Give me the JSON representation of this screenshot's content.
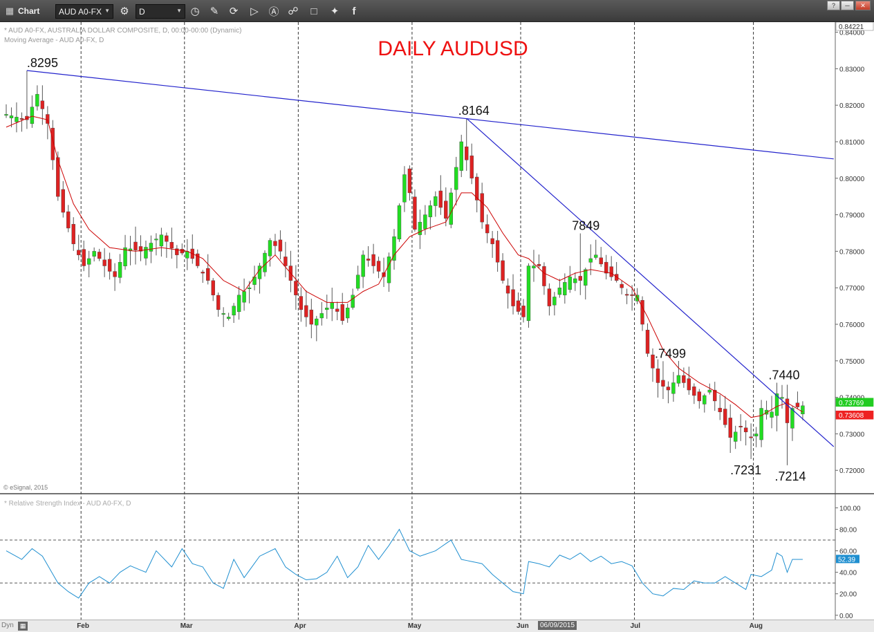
{
  "toolbar": {
    "app_label": "Chart",
    "symbol": "AUD A0-FX",
    "interval": "D"
  },
  "status": {
    "dyn_label": "Dyn",
    "cursor_date": "06/09/2015"
  },
  "colors": {
    "up_candle": "#22dd22",
    "down_candle": "#dd2222",
    "moving_average": "#cc0000",
    "trendline": "#2222cc",
    "rsi_line": "#1f8fd0",
    "title": "#ee1111",
    "current_price_badge": "#22cc22",
    "ma_badge": "#ee2222",
    "rsi_badge": "#1f8fd0"
  },
  "chart_data": [
    {
      "type": "candlestick",
      "title": "DAILY AUDUSD",
      "header_line_1": "* AUD A0-FX, AUSTRALIA DOLLAR COMPOSITE, D, 00:00-00:00 (Dynamic)",
      "header_line_2": "Moving Average - AUD A0-FX, D",
      "copyright": "© eSignal, 2015",
      "y_axis_position": "right",
      "ylim": [
        0.7155,
        0.842
      ],
      "y_ticks": [
        {
          "value": 0.72,
          "label": "0.72000"
        },
        {
          "value": 0.73,
          "label": "0.73000"
        },
        {
          "value": 0.74,
          "label": "0.74000"
        },
        {
          "value": 0.75,
          "label": "0.75000"
        },
        {
          "value": 0.76,
          "label": "0.76000"
        },
        {
          "value": 0.77,
          "label": "0.77000"
        },
        {
          "value": 0.78,
          "label": "0.78000"
        },
        {
          "value": 0.79,
          "label": "0.79000"
        },
        {
          "value": 0.8,
          "label": "0.80000"
        },
        {
          "value": 0.81,
          "label": "0.81000"
        },
        {
          "value": 0.82,
          "label": "0.82000"
        },
        {
          "value": 0.83,
          "label": "0.83000"
        },
        {
          "value": 0.84,
          "label": "0.84000"
        }
      ],
      "x_months": [
        {
          "label": "Feb",
          "bar_index": 15
        },
        {
          "label": "Mar",
          "bar_index": 35
        },
        {
          "label": "Apr",
          "bar_index": 57
        },
        {
          "label": "May",
          "bar_index": 79
        },
        {
          "label": "Jun",
          "bar_index": 100
        },
        {
          "label": "Jul",
          "bar_index": 122
        },
        {
          "label": "Aug",
          "bar_index": 145
        }
      ],
      "bar_count": 155,
      "series": [
        {
          "name": "AUD A0-FX",
          "kind": "ohlc",
          "anchors": [
            [
              0,
              0.8175
            ],
            [
              4,
              0.816
            ],
            [
              6,
              0.823
            ],
            [
              8,
              0.815
            ],
            [
              10,
              0.795
            ],
            [
              13,
              0.782
            ],
            [
              15,
              0.776
            ],
            [
              17,
              0.78
            ],
            [
              19,
              0.776
            ],
            [
              21,
              0.773
            ],
            [
              23,
              0.781
            ],
            [
              26,
              0.78
            ],
            [
              30,
              0.7845
            ],
            [
              33,
              0.779
            ],
            [
              35,
              0.78
            ],
            [
              37,
              0.776
            ],
            [
              39,
              0.772
            ],
            [
              41,
              0.764
            ],
            [
              43,
              0.762
            ],
            [
              45,
              0.768
            ],
            [
              47,
              0.77
            ],
            [
              49,
              0.776
            ],
            [
              51,
              0.783
            ],
            [
              53,
              0.78
            ],
            [
              55,
              0.772
            ],
            [
              57,
              0.764
            ],
            [
              59,
              0.76
            ],
            [
              61,
              0.763
            ],
            [
              63,
              0.766
            ],
            [
              65,
              0.761
            ],
            [
              67,
              0.768
            ],
            [
              69,
              0.779
            ],
            [
              71,
              0.776
            ],
            [
              73,
              0.773
            ],
            [
              75,
              0.784
            ],
            [
              77,
              0.801
            ],
            [
              78,
              0.796
            ],
            [
              79,
              0.786
            ],
            [
              81,
              0.79
            ],
            [
              83,
              0.795
            ],
            [
              85,
              0.789
            ],
            [
              87,
              0.803
            ],
            [
              88,
              0.81
            ],
            [
              90,
              0.8
            ],
            [
              92,
              0.788
            ],
            [
              94,
              0.782
            ],
            [
              96,
              0.772
            ],
            [
              98,
              0.765
            ],
            [
              100,
              0.762
            ],
            [
              101,
              0.776
            ],
            [
              103,
              0.776
            ],
            [
              105,
              0.765
            ],
            [
              107,
              0.77
            ],
            [
              109,
              0.773
            ],
            [
              111,
              0.772
            ],
            [
              113,
              0.778
            ],
            [
              114,
              0.779
            ],
            [
              116,
              0.774
            ],
            [
              118,
              0.772
            ],
            [
              120,
              0.768
            ],
            [
              122,
              0.768
            ],
            [
              124,
              0.752
            ],
            [
              126,
              0.744
            ],
            [
              128,
              0.742
            ],
            [
              130,
              0.746
            ],
            [
              132,
              0.742
            ],
            [
              134,
              0.739
            ],
            [
              136,
              0.742
            ],
            [
              138,
              0.736
            ],
            [
              140,
              0.729
            ],
            [
              142,
              0.732
            ],
            [
              144,
              0.729
            ],
            [
              145,
              0.73
            ],
            [
              146,
              0.737
            ],
            [
              148,
              0.736
            ],
            [
              149,
              0.741
            ],
            [
              150,
              0.74
            ],
            [
              151,
              0.733
            ],
            [
              152,
              0.737
            ],
            [
              154,
              0.7377
            ]
          ],
          "marked_levels": [
            {
              "label": ".8295",
              "bar_index": 4,
              "price": 0.8295
            },
            {
              "label": ".8164",
              "bar_index": 89,
              "price": 0.8164
            },
            {
              "label": "7849",
              "bar_index": 111,
              "price": 0.7849
            },
            {
              "label": ".7499",
              "bar_index": 127,
              "price": 0.7499
            },
            {
              "label": ".7440",
              "bar_index": 149,
              "price": 0.744
            },
            {
              "label": ".7231",
              "bar_index": 144,
              "price": 0.7231
            },
            {
              "label": ".7214",
              "bar_index": 151,
              "price": 0.7214
            }
          ]
        },
        {
          "name": "Moving Average",
          "kind": "line",
          "anchors": [
            [
              0,
              0.814
            ],
            [
              5,
              0.817
            ],
            [
              8,
              0.816
            ],
            [
              10,
              0.805
            ],
            [
              13,
              0.793
            ],
            [
              16,
              0.786
            ],
            [
              20,
              0.781
            ],
            [
              25,
              0.78
            ],
            [
              30,
              0.781
            ],
            [
              35,
              0.78
            ],
            [
              38,
              0.778
            ],
            [
              42,
              0.772
            ],
            [
              46,
              0.769
            ],
            [
              49,
              0.775
            ],
            [
              52,
              0.779
            ],
            [
              55,
              0.774
            ],
            [
              58,
              0.769
            ],
            [
              62,
              0.766
            ],
            [
              66,
              0.766
            ],
            [
              69,
              0.769
            ],
            [
              72,
              0.771
            ],
            [
              75,
              0.779
            ],
            [
              78,
              0.784
            ],
            [
              81,
              0.786
            ],
            [
              85,
              0.788
            ],
            [
              88,
              0.796
            ],
            [
              90,
              0.796
            ],
            [
              93,
              0.792
            ],
            [
              96,
              0.785
            ],
            [
              99,
              0.779
            ],
            [
              101,
              0.778
            ],
            [
              104,
              0.774
            ],
            [
              107,
              0.772
            ],
            [
              110,
              0.774
            ],
            [
              113,
              0.775
            ],
            [
              117,
              0.774
            ],
            [
              121,
              0.77
            ],
            [
              124,
              0.762
            ],
            [
              127,
              0.753
            ],
            [
              130,
              0.748
            ],
            [
              134,
              0.744
            ],
            [
              138,
              0.741
            ],
            [
              141,
              0.738
            ],
            [
              144,
              0.7345
            ],
            [
              146,
              0.735
            ],
            [
              149,
              0.7375
            ],
            [
              151,
              0.7385
            ],
            [
              154,
              0.736
            ]
          ]
        }
      ],
      "trendlines": [
        {
          "from": [
            4,
            0.8295
          ],
          "to": [
            160,
            0.8053
          ]
        },
        {
          "from": [
            89,
            0.8164
          ],
          "to": [
            160,
            0.7265
          ]
        }
      ],
      "price_badges": [
        {
          "label": "0.84221",
          "value": 0.8422,
          "role": "axis-top"
        },
        {
          "label": "0.73769",
          "value": 0.7377,
          "role": "last-price"
        },
        {
          "label": "0.73608",
          "value": 0.7361,
          "role": "moving-average"
        }
      ]
    },
    {
      "type": "line",
      "title": "* Relative Strength Index - AUD A0-FX, D",
      "y_axis_position": "right",
      "ylim": [
        -4,
        108
      ],
      "y_ticks": [
        {
          "value": 0,
          "label": "0.00"
        },
        {
          "value": 20,
          "label": "20.00"
        },
        {
          "value": 40,
          "label": "40.00"
        },
        {
          "value": 60,
          "label": "60.00"
        },
        {
          "value": 80,
          "label": "80.00"
        },
        {
          "value": 100,
          "label": "100.00"
        }
      ],
      "reference_levels": [
        30,
        70
      ],
      "series": [
        {
          "name": "Relative Strength Index",
          "anchors": [
            [
              0,
              60
            ],
            [
              3,
              52
            ],
            [
              5,
              62
            ],
            [
              7,
              55
            ],
            [
              10,
              30
            ],
            [
              12,
              22
            ],
            [
              14,
              16
            ],
            [
              16,
              30
            ],
            [
              18,
              36
            ],
            [
              20,
              30
            ],
            [
              22,
              40
            ],
            [
              24,
              46
            ],
            [
              27,
              40
            ],
            [
              29,
              60
            ],
            [
              32,
              45
            ],
            [
              34,
              62
            ],
            [
              36,
              48
            ],
            [
              38,
              45
            ],
            [
              40,
              30
            ],
            [
              42,
              25
            ],
            [
              44,
              52
            ],
            [
              46,
              35
            ],
            [
              49,
              55
            ],
            [
              52,
              62
            ],
            [
              54,
              45
            ],
            [
              56,
              38
            ],
            [
              58,
              33
            ],
            [
              60,
              34
            ],
            [
              62,
              40
            ],
            [
              64,
              55
            ],
            [
              66,
              35
            ],
            [
              68,
              45
            ],
            [
              70,
              65
            ],
            [
              72,
              52
            ],
            [
              74,
              65
            ],
            [
              76,
              80
            ],
            [
              78,
              60
            ],
            [
              80,
              55
            ],
            [
              83,
              60
            ],
            [
              86,
              70
            ],
            [
              88,
              52
            ],
            [
              90,
              50
            ],
            [
              92,
              48
            ],
            [
              94,
              38
            ],
            [
              96,
              30
            ],
            [
              98,
              22
            ],
            [
              100,
              20
            ],
            [
              101,
              50
            ],
            [
              103,
              48
            ],
            [
              105,
              45
            ],
            [
              107,
              56
            ],
            [
              109,
              52
            ],
            [
              111,
              58
            ],
            [
              113,
              50
            ],
            [
              115,
              55
            ],
            [
              117,
              48
            ],
            [
              119,
              50
            ],
            [
              121,
              46
            ],
            [
              123,
              30
            ],
            [
              125,
              20
            ],
            [
              127,
              18
            ],
            [
              129,
              25
            ],
            [
              131,
              24
            ],
            [
              133,
              32
            ],
            [
              135,
              30
            ],
            [
              137,
              30
            ],
            [
              139,
              36
            ],
            [
              141,
              30
            ],
            [
              143,
              24
            ],
            [
              144,
              38
            ],
            [
              146,
              36
            ],
            [
              148,
              42
            ],
            [
              149,
              58
            ],
            [
              150,
              55
            ],
            [
              151,
              40
            ],
            [
              152,
              52
            ],
            [
              154,
              52
            ]
          ]
        }
      ],
      "price_badges": [
        {
          "label": "52.39",
          "value": 52.39,
          "role": "last-value"
        }
      ]
    }
  ]
}
